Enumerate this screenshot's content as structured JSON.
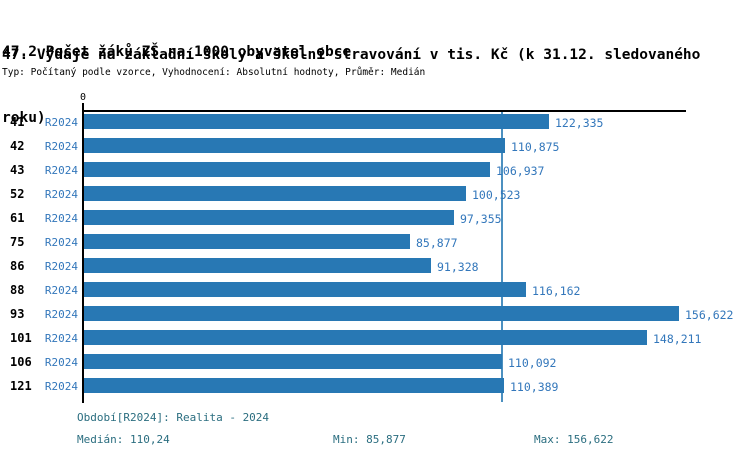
{
  "header": {
    "title_line1": "47. Výdaje na základní školy a školní stravování v tis. Kč (k 31.12. sledovaného",
    "title_line2": "roku)",
    "section_title": "47.2 Počet žáků ZŠ na 1000 obyvatel obce",
    "meta_line": "Typ: Počítaný podle vzorce, Vyhodnocení: Absolutní hodnoty, Průměr: Medián"
  },
  "chart_data": {
    "type": "bar",
    "orientation": "horizontal",
    "title": "47.2 Počet žáků ZŠ na 1000 obyvatel obce",
    "categories": [
      "41",
      "42",
      "43",
      "52",
      "61",
      "75",
      "86",
      "88",
      "93",
      "101",
      "106",
      "121"
    ],
    "series": [
      {
        "name": "R2024",
        "values": [
          122335,
          110875,
          106937,
          100523,
          97355,
          85877,
          91328,
          116162,
          156622,
          148211,
          110092,
          110389
        ]
      }
    ],
    "value_labels": [
      "122,335",
      "110,875",
      "106,937",
      "100,523",
      "97,355",
      "85,877",
      "91,328",
      "116,162",
      "156,622",
      "148,211",
      "110,092",
      "110,389"
    ],
    "x_axis": {
      "tick_labels": [
        "0"
      ],
      "range": [
        0,
        158600
      ]
    },
    "median_line_value": 110240,
    "grid": false,
    "legend": "none",
    "bar_color": "#2878B4",
    "median_line_color": "#4C90C0"
  },
  "footer": {
    "period_label": "Období[R2024]: Realita - 2024",
    "median_label": "Medián: 110,24",
    "min_label": "Min: 85,877",
    "max_label": "Max: 156,622"
  },
  "colors": {
    "title_text": "#000000",
    "row_number_text": "#000000",
    "series_label_text": "#3377BB",
    "value_label_text": "#3377BB",
    "footer_text": "#2B6E80",
    "axis": "#000000",
    "background": "#FFFFFF"
  }
}
